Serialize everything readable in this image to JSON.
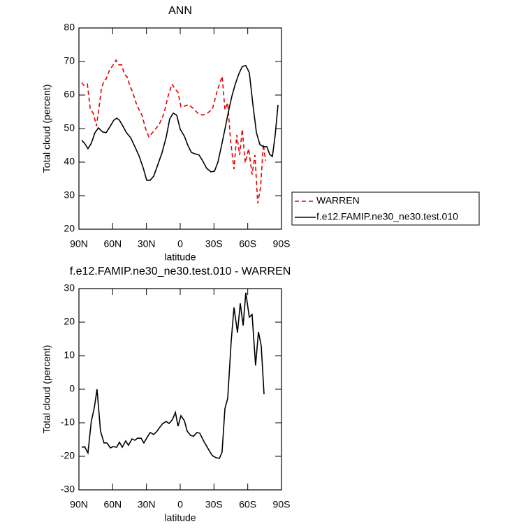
{
  "chart_data": [
    {
      "type": "line",
      "title": "ANN",
      "xlabel": "latitude",
      "ylabel": "Total cloud (percent)",
      "xlim": [
        90,
        -90
      ],
      "ylim": [
        20,
        80
      ],
      "xticks": [
        {
          "value": 90,
          "label": "90N"
        },
        {
          "value": 60,
          "label": "60N"
        },
        {
          "value": 30,
          "label": "30N"
        },
        0,
        {
          "value": -30,
          "label": "30S"
        },
        {
          "value": -60,
          "label": "60S"
        },
        {
          "value": -90,
          "label": "90S"
        }
      ],
      "yticks": [
        20,
        30,
        40,
        50,
        60,
        70,
        80
      ],
      "legend": "right",
      "series": [
        {
          "name": "WARREN",
          "color": "#e00000",
          "linestyle": "dashed",
          "x": [
            87.5,
            85.7,
            82.5,
            80,
            77,
            74.5,
            72.6,
            70,
            67.6,
            65.8,
            62.7,
            59.6,
            57,
            54.6,
            52,
            49.7,
            47.2,
            44.7,
            42.2,
            38.5,
            34,
            31,
            27.9,
            23.6,
            18.6,
            14.3,
            11.2,
            7.4,
            4.3,
            1.9,
            -0.6,
            -3.7,
            -7.5,
            -11.8,
            -15.5,
            -19.9,
            -24.2,
            -28.6,
            -32.9,
            -37.3,
            -39.7,
            -42.2,
            -44.7,
            -47.8,
            -50.3,
            -52.8,
            -55.2,
            -57.7,
            -60.8,
            -63.9,
            -66.4,
            -68.9,
            -71.4,
            -73.9,
            -75.7
          ],
          "values": [
            63.7,
            62.9,
            63.3,
            56,
            54.4,
            50.8,
            55,
            61.9,
            64.4,
            64.8,
            67.5,
            69,
            70.4,
            69,
            69,
            66.3,
            65.4,
            62.7,
            60.8,
            56.9,
            54,
            50.2,
            47.5,
            49.2,
            51.3,
            54.6,
            59.2,
            63.3,
            61.7,
            60.8,
            56.5,
            56.7,
            57.1,
            56,
            54.6,
            54,
            54.6,
            55.8,
            61.3,
            65.6,
            55.6,
            57.7,
            46.7,
            37.9,
            48.1,
            42.1,
            49.8,
            39.8,
            44,
            36.3,
            42.1,
            27.7,
            32.5,
            45.4,
            40.4
          ]
        },
        {
          "name": "f.e12.FAMIP.ne30_ne30.test.010",
          "color": "#000000",
          "linestyle": "solid",
          "x": [
            87.5,
            85,
            82,
            79,
            75.7,
            72.6,
            69,
            65.8,
            62,
            59,
            56.5,
            54,
            51,
            47.8,
            44,
            40.3,
            36.6,
            32.9,
            29.8,
            26.7,
            23.6,
            19.9,
            16.1,
            12.4,
            9.3,
            6.2,
            3.1,
            0,
            -3.7,
            -6.8,
            -9.9,
            -13,
            -16.8,
            -19.9,
            -23.6,
            -27.3,
            -30.4,
            -33.5,
            -36.6,
            -39.7,
            -42.8,
            -45.9,
            -49,
            -52.1,
            -55.2,
            -58.3,
            -61.4,
            -64.6,
            -67.7,
            -70.8,
            -73.9,
            -77,
            -79.5,
            -81.9,
            -84.4,
            -86.9
          ],
          "values": [
            46.5,
            45.6,
            44,
            45.6,
            48.8,
            50.2,
            49,
            48.8,
            50.8,
            52.5,
            53.1,
            52.5,
            50.8,
            48.8,
            47.3,
            44.6,
            41.9,
            38.3,
            34.6,
            34.6,
            35.8,
            39.2,
            42.9,
            47.5,
            52.9,
            54.6,
            54,
            49.8,
            47.7,
            45,
            42.9,
            42.5,
            42.1,
            40.4,
            38.1,
            37.1,
            37.3,
            40,
            44.8,
            49.8,
            55,
            59.6,
            63.3,
            66.3,
            68.5,
            68.8,
            66.7,
            57.1,
            48.8,
            45.2,
            44.6,
            44.6,
            42.3,
            41.7,
            48.1,
            57.1
          ]
        }
      ]
    },
    {
      "type": "line",
      "title": "f.e12.FAMIP.ne30_ne30.test.010 - WARREN",
      "xlabel": "latitude",
      "ylabel": "Total cloud (percent)",
      "xlim": [
        90,
        -90
      ],
      "ylim": [
        -30,
        30
      ],
      "xticks": [
        {
          "value": 90,
          "label": "90N"
        },
        {
          "value": 60,
          "label": "60N"
        },
        {
          "value": 30,
          "label": "30N"
        },
        0,
        {
          "value": -30,
          "label": "30S"
        },
        {
          "value": -60,
          "label": "60S"
        },
        {
          "value": -90,
          "label": "90S"
        }
      ],
      "yticks": [
        -30,
        -20,
        -10,
        0,
        10,
        20,
        30
      ],
      "series": [
        {
          "color": "#000000",
          "linestyle": "solid",
          "x": [
            87.5,
            85,
            82,
            79,
            76.3,
            73.9,
            70.8,
            67.7,
            65.2,
            62,
            59.6,
            56.5,
            54,
            51.5,
            48.4,
            46,
            42.8,
            40.3,
            37.9,
            34.8,
            32.3,
            29.2,
            26.7,
            23.6,
            21.1,
            18,
            15.5,
            12.4,
            9.9,
            6.8,
            4.3,
            1.9,
            -0.6,
            -3.7,
            -6.2,
            -9.3,
            -11.8,
            -14.9,
            -17.4,
            -20.5,
            -23,
            -26.1,
            -28.6,
            -31.7,
            -34.8,
            -37.2,
            -39.7,
            -42.2,
            -45.3,
            -47.8,
            -50.9,
            -53.4,
            -55.9,
            -58.3,
            -61.4,
            -63.9,
            -67,
            -69.5,
            -72,
            -74.5
          ],
          "values": [
            -17.3,
            -17.1,
            -19,
            -9.6,
            -5.4,
            0,
            -12.5,
            -16,
            -16,
            -17.5,
            -17.1,
            -17.3,
            -15.8,
            -17.3,
            -15.4,
            -16.7,
            -14.8,
            -15.2,
            -14.6,
            -14.6,
            -16,
            -14.2,
            -12.9,
            -13.5,
            -12.7,
            -11.3,
            -10.2,
            -9.6,
            -10.2,
            -9,
            -6.9,
            -11,
            -7.9,
            -9.4,
            -12.5,
            -13.8,
            -14,
            -12.9,
            -13.1,
            -15.2,
            -16.7,
            -18.5,
            -19.8,
            -20.4,
            -20.6,
            -18.8,
            -5.8,
            -2.7,
            14.4,
            24.4,
            16.9,
            25.6,
            19,
            28.8,
            21.5,
            22.3,
            7.1,
            17.1,
            12.9,
            -1.5
          ]
        }
      ]
    }
  ]
}
